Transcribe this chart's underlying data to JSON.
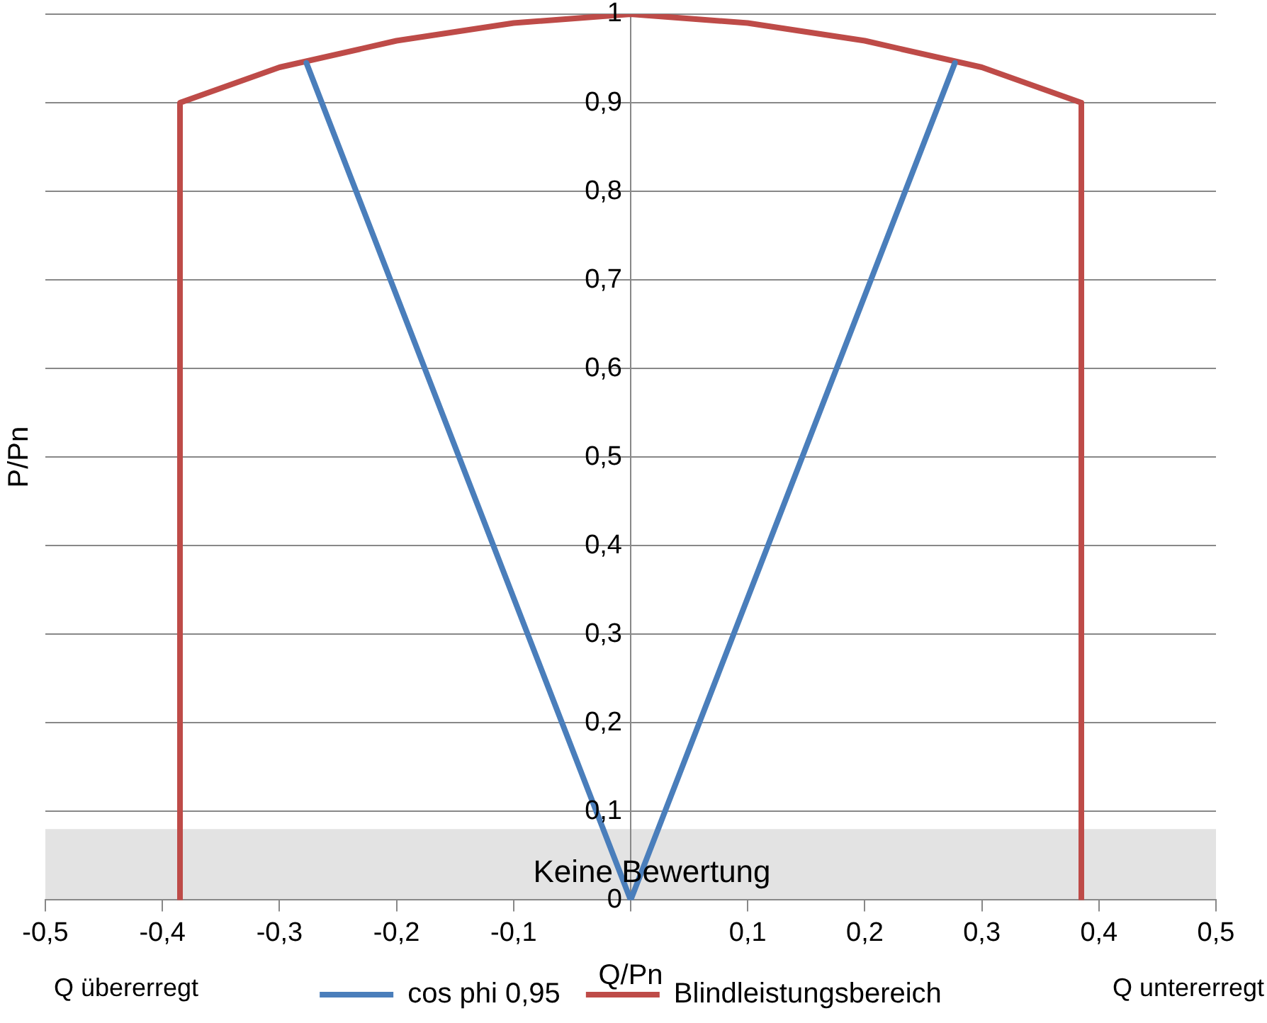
{
  "chart_data": {
    "type": "line",
    "xlabel": "Q/Pn",
    "ylabel": "P/Pn",
    "xlim": [
      -0.5,
      0.5
    ],
    "ylim": [
      0,
      1
    ],
    "xticks": [
      {
        "value": -0.5,
        "label": "-0,5"
      },
      {
        "value": -0.4,
        "label": "-0,4"
      },
      {
        "value": -0.3,
        "label": "-0,3"
      },
      {
        "value": -0.2,
        "label": "-0,2"
      },
      {
        "value": -0.1,
        "label": "-0,1"
      },
      {
        "value": 0,
        "label": null
      },
      {
        "value": 0.1,
        "label": "0,1"
      },
      {
        "value": 0.2,
        "label": "0,2"
      },
      {
        "value": 0.3,
        "label": "0,3"
      },
      {
        "value": 0.4,
        "label": "0,4"
      },
      {
        "value": 0.5,
        "label": "0,5"
      }
    ],
    "yticks": [
      0,
      {
        "value": 0.1,
        "label": "0,1"
      },
      {
        "value": 0.2,
        "label": "0,2"
      },
      {
        "value": 0.3,
        "label": "0,3"
      },
      {
        "value": 0.4,
        "label": "0,4"
      },
      {
        "value": 0.5,
        "label": "0,5"
      },
      {
        "value": 0.6,
        "label": "0,6"
      },
      {
        "value": 0.7,
        "label": "0,7"
      },
      {
        "value": 0.8,
        "label": "0,8"
      },
      {
        "value": 0.9,
        "label": "0,9"
      },
      1
    ],
    "grid": "y",
    "legend": "bottom",
    "marker": "none",
    "line_style": "solid",
    "series": [
      {
        "name": "cos phi 0,95",
        "color": "#4a7ebb",
        "x": [
          -0.277,
          0,
          0.277
        ],
        "values": [
          0.945,
          0,
          0.945
        ]
      },
      {
        "name": "Blindleistungsbereich",
        "color": "#be4b48",
        "x": [
          -0.385,
          -0.385,
          -0.3,
          -0.2,
          -0.1,
          0,
          0.1,
          0.2,
          0.3,
          0.385,
          0.385
        ],
        "values": [
          0,
          0.9,
          0.94,
          0.97,
          0.99,
          1,
          0.99,
          0.97,
          0.94,
          0.9,
          0
        ]
      }
    ],
    "bands": [
      {
        "axis": "y",
        "from": 0,
        "to": 0.08,
        "label": "Keine Bewertung",
        "color": "#e3e3e3"
      }
    ],
    "annotations": [
      "Q übererregt",
      "Q untererregt"
    ]
  }
}
